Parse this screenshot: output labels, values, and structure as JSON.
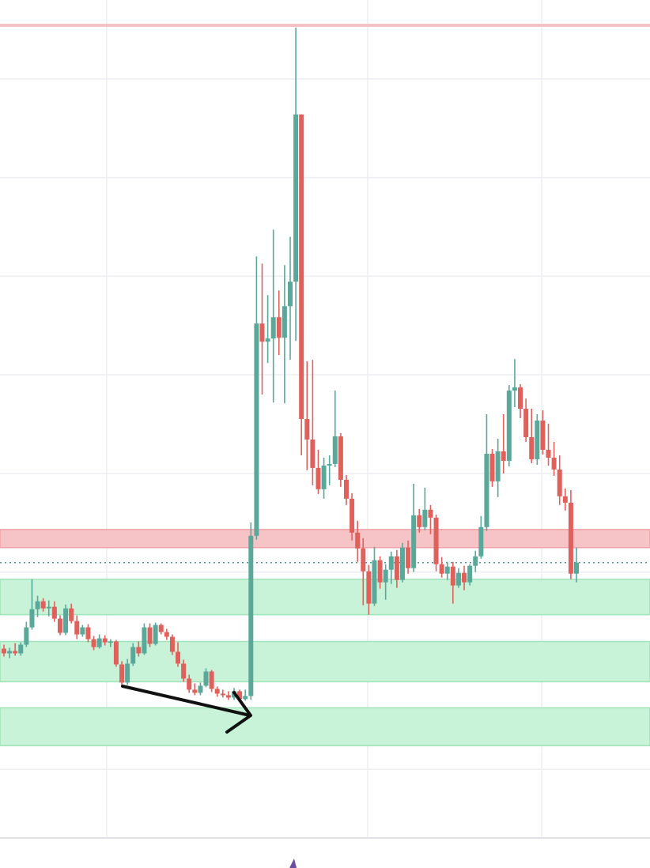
{
  "chart_data": {
    "type": "candlestick",
    "up_color": "#5aa89a",
    "down_color": "#e0615b",
    "grid": true,
    "xlim": [
      -0.7,
      115.1
    ],
    "xticks": [
      18.3,
      64.8,
      95.8
    ],
    "ylim": [
      0,
      110
    ],
    "yticks": [
      12.5,
      25,
      37.5,
      50,
      62.5,
      75,
      87.5,
      100
    ],
    "zones": [
      {
        "from": 40.6,
        "to": 42.9,
        "color": "#f6c4c7",
        "edge": "#f0a4a9"
      },
      {
        "from": 32.1,
        "to": 36.6,
        "color": "#c9f3d9",
        "edge": "#9fe3b8"
      },
      {
        "from": 23.6,
        "to": 28.7,
        "color": "#c9f3d9",
        "edge": "#9fe3b8"
      },
      {
        "from": 15.5,
        "to": 20.3,
        "color": "#c9f3d9",
        "edge": "#9fe3b8"
      }
    ],
    "levels": [
      {
        "value": 106.8,
        "color": "#f4c2c5",
        "dotted": false
      },
      {
        "value": 38.7,
        "color": "#4f9a9a",
        "dotted": true
      }
    ],
    "ohlc": [
      [
        27.8,
        28.3,
        26.8,
        27.2
      ],
      [
        27.2,
        27.9,
        26.6,
        27.5
      ],
      [
        27.5,
        28.5,
        26.9,
        27.2
      ],
      [
        27.2,
        28.6,
        26.9,
        28.3
      ],
      [
        28.3,
        31.2,
        28.0,
        30.5
      ],
      [
        30.5,
        36.6,
        30.2,
        32.8
      ],
      [
        32.8,
        34.5,
        31.8,
        33.8
      ],
      [
        33.8,
        34.2,
        32.5,
        32.9
      ],
      [
        32.9,
        33.9,
        31.9,
        33.1
      ],
      [
        33.1,
        33.8,
        31.2,
        31.6
      ],
      [
        31.6,
        32.0,
        29.5,
        29.8
      ],
      [
        29.8,
        33.4,
        29.5,
        32.9
      ],
      [
        32.9,
        33.5,
        31.0,
        31.3
      ],
      [
        31.3,
        32.0,
        29.0,
        29.6
      ],
      [
        29.6,
        30.8,
        29.3,
        30.5
      ],
      [
        30.5,
        30.9,
        28.6,
        29.0
      ],
      [
        29.0,
        29.4,
        27.6,
        28.0
      ],
      [
        28.0,
        29.6,
        27.8,
        29.1
      ],
      [
        29.1,
        29.5,
        28.2,
        28.6
      ],
      [
        28.6,
        29.0,
        28.0,
        28.7
      ],
      [
        28.7,
        28.9,
        25.5,
        25.8
      ],
      [
        25.8,
        26.2,
        23.0,
        23.5
      ],
      [
        23.5,
        26.5,
        23.2,
        25.9
      ],
      [
        25.9,
        28.5,
        25.6,
        28.0
      ],
      [
        28.0,
        28.7,
        26.8,
        27.2
      ],
      [
        27.2,
        31.0,
        27.0,
        30.5
      ],
      [
        30.5,
        31.0,
        28.0,
        28.4
      ],
      [
        28.4,
        31.1,
        28.2,
        30.8
      ],
      [
        30.8,
        31.0,
        29.6,
        29.9
      ],
      [
        29.9,
        30.3,
        28.9,
        29.3
      ],
      [
        29.3,
        29.6,
        27.0,
        27.4
      ],
      [
        27.4,
        28.6,
        25.5,
        25.9
      ],
      [
        25.9,
        26.4,
        23.6,
        24.0
      ],
      [
        24.0,
        24.5,
        22.2,
        22.6
      ],
      [
        22.6,
        23.4,
        21.9,
        22.2
      ],
      [
        22.2,
        23.5,
        21.9,
        23.1
      ],
      [
        23.1,
        25.3,
        22.9,
        24.9
      ],
      [
        24.9,
        25.1,
        22.3,
        22.7
      ],
      [
        22.7,
        23.0,
        21.7,
        22.1
      ],
      [
        22.1,
        22.6,
        21.6,
        21.9
      ],
      [
        21.9,
        22.4,
        21.3,
        21.6
      ],
      [
        21.6,
        22.8,
        21.3,
        22.4
      ],
      [
        22.4,
        22.6,
        21.2,
        21.4
      ],
      [
        21.4,
        22.6,
        21.2,
        21.8
      ],
      [
        21.8,
        43.8,
        21.3,
        42.1
      ],
      [
        42.1,
        77.5,
        41.6,
        69.0
      ],
      [
        69.0,
        76.6,
        60.0,
        66.7
      ],
      [
        66.7,
        72.6,
        64.0,
        67.1
      ],
      [
        67.1,
        80.9,
        59.0,
        69.8
      ],
      [
        69.8,
        73.2,
        65.0,
        67.2
      ],
      [
        67.2,
        76.4,
        58.9,
        71.2
      ],
      [
        71.2,
        80.0,
        64.4,
        74.3
      ],
      [
        74.3,
        106.5,
        66.8,
        95.5
      ],
      [
        95.5,
        95.5,
        52.3,
        56.9
      ],
      [
        56.9,
        64.2,
        50.4,
        54.3
      ],
      [
        54.3,
        64.4,
        48.5,
        50.7
      ],
      [
        50.7,
        53.0,
        47.4,
        48.0
      ],
      [
        48.0,
        52.0,
        46.8,
        51.0
      ],
      [
        51.0,
        52.3,
        48.5,
        51.2
      ],
      [
        51.2,
        60.5,
        50.8,
        54.7
      ],
      [
        54.7,
        55.1,
        48.3,
        49.2
      ],
      [
        49.2,
        49.8,
        46.0,
        46.8
      ],
      [
        46.8,
        47.5,
        41.5,
        42.5
      ],
      [
        42.5,
        44.0,
        38.8,
        40.5
      ],
      [
        40.5,
        41.8,
        33.3,
        37.6
      ],
      [
        37.6,
        38.4,
        32.1,
        33.5
      ],
      [
        33.5,
        40.7,
        33.2,
        39.0
      ],
      [
        39.0,
        39.5,
        35.4,
        36.2
      ],
      [
        36.2,
        38.5,
        34.0,
        37.8
      ],
      [
        37.8,
        40.1,
        36.0,
        39.5
      ],
      [
        39.5,
        40.3,
        35.5,
        36.5
      ],
      [
        36.5,
        41.2,
        36.2,
        40.6
      ],
      [
        40.6,
        41.5,
        37.3,
        38.0
      ],
      [
        38.0,
        48.7,
        37.5,
        44.7
      ],
      [
        44.7,
        45.5,
        42.5,
        43.2
      ],
      [
        43.2,
        48.2,
        42.8,
        45.4
      ],
      [
        45.4,
        46.0,
        42.3,
        44.4
      ],
      [
        44.4,
        44.8,
        37.6,
        38.5
      ],
      [
        38.5,
        39.4,
        36.8,
        37.3
      ],
      [
        37.3,
        38.8,
        36.5,
        38.2
      ],
      [
        38.2,
        38.8,
        33.5,
        35.8
      ],
      [
        35.8,
        38.0,
        35.5,
        37.4
      ],
      [
        37.4,
        38.3,
        35.2,
        36.2
      ],
      [
        36.2,
        38.5,
        35.8,
        38.3
      ],
      [
        38.3,
        40.2,
        37.5,
        39.5
      ],
      [
        39.5,
        44.6,
        39.2,
        43.2
      ],
      [
        43.2,
        57.5,
        42.7,
        52.5
      ],
      [
        52.5,
        53.1,
        48.3,
        49.0
      ],
      [
        49.0,
        54.4,
        47.0,
        52.8
      ],
      [
        52.8,
        57.5,
        50.0,
        51.6
      ],
      [
        51.6,
        61.2,
        50.9,
        60.5
      ],
      [
        60.5,
        64.5,
        58.4,
        60.9
      ],
      [
        60.9,
        61.3,
        57.0,
        58.2
      ],
      [
        58.2,
        59.5,
        54.0,
        54.6
      ],
      [
        54.6,
        58.2,
        51.3,
        51.8
      ],
      [
        51.8,
        57.5,
        51.1,
        56.7
      ],
      [
        56.7,
        58.0,
        52.4,
        53.0
      ],
      [
        53.0,
        56.3,
        51.0,
        52.0
      ],
      [
        52.0,
        54.0,
        49.7,
        50.5
      ],
      [
        50.5,
        52.3,
        46.0,
        47.1
      ],
      [
        47.1,
        48.1,
        45.3,
        46.3
      ],
      [
        46.3,
        47.9,
        36.6,
        37.3
      ],
      [
        37.3,
        40.6,
        36.2,
        38.7
      ]
    ]
  }
}
